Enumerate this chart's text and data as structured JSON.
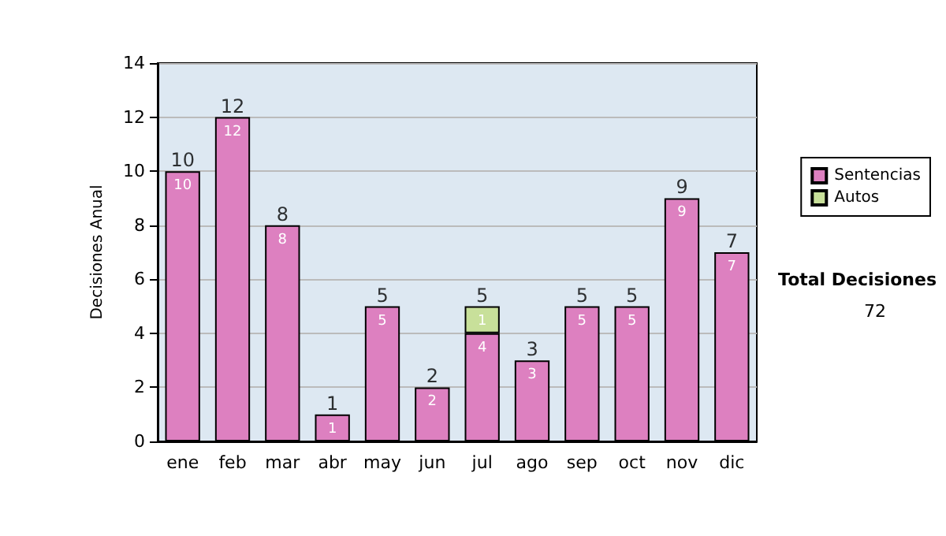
{
  "chart_data": {
    "type": "bar",
    "ylabel": "Decisiones Anual",
    "categories": [
      "ene",
      "feb",
      "mar",
      "abr",
      "may",
      "jun",
      "jul",
      "ago",
      "sep",
      "oct",
      "nov",
      "dic"
    ],
    "series": [
      {
        "name": "Sentencias",
        "color": "#dd80c0",
        "values": [
          10,
          12,
          8,
          1,
          5,
          2,
          4,
          3,
          5,
          5,
          9,
          7
        ]
      },
      {
        "name": "Autos",
        "color": "#c8e09a",
        "values": [
          null,
          null,
          null,
          null,
          null,
          null,
          1,
          null,
          null,
          null,
          null,
          null
        ]
      }
    ],
    "stacked": true,
    "data_labels": true,
    "totals": [
      "10",
      "12",
      "8",
      "1",
      "5",
      "2",
      "5",
      "3",
      "5",
      "5",
      "9",
      "7"
    ],
    "ylim": [
      0,
      14
    ],
    "yticks": [
      0,
      2,
      4,
      6,
      8,
      10,
      12,
      14
    ],
    "grid": "y",
    "legend": "right",
    "annotations": [
      "Total Decisiones",
      "72"
    ]
  }
}
